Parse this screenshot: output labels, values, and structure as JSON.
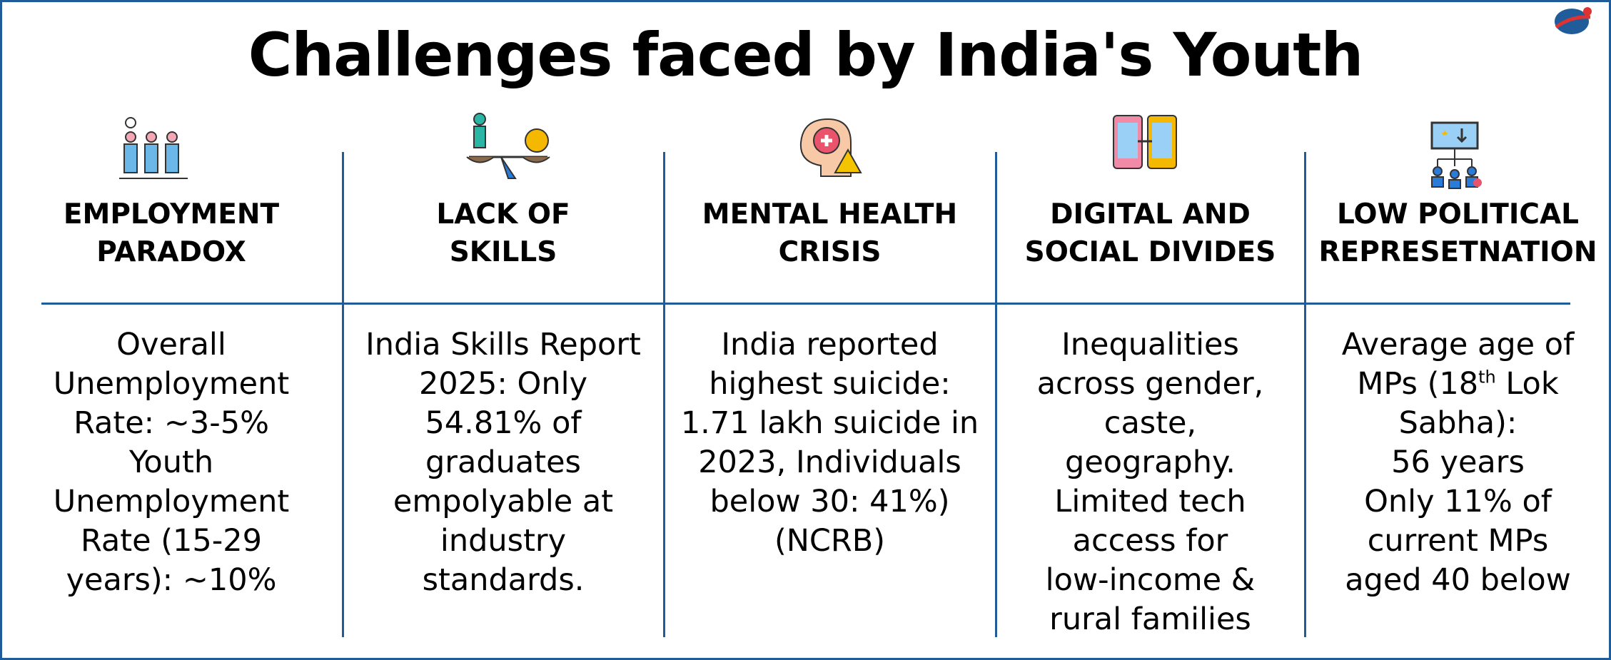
{
  "header": {
    "title": "Challenges faced by India's Youth"
  },
  "columns": [
    {
      "heading": [
        "EMPLOYMENT",
        "PARADOX"
      ],
      "lines": [
        "Overall",
        "Unemployment",
        "Rate: ~3-5%",
        "Youth",
        "Unemployment",
        "Rate (15-29",
        "years): ~10%"
      ]
    },
    {
      "heading": [
        "LACK OF",
        "SKILLS"
      ],
      "lines": [
        "India Skills Report",
        "2025: Only",
        "54.81% of",
        "graduates",
        "empolyable at",
        "industry",
        "standards."
      ]
    },
    {
      "heading": [
        "MENTAL HEALTH",
        "CRISIS"
      ],
      "lines": [
        "India reported",
        "highest suicide:",
        "1.71 lakh suicide in",
        "2023, Individuals",
        "below 30: 41%)",
        "(NCRB)"
      ]
    },
    {
      "heading": [
        "DIGITAL AND",
        "SOCIAL DIVIDES"
      ],
      "lines": [
        "Inequalities",
        "across gender,",
        "caste,",
        "geography.",
        "Limited tech",
        "access for",
        "low-income &",
        "rural families"
      ]
    },
    {
      "heading": [
        "LOW POLITICAL",
        "REPRESETNATION"
      ],
      "lines": [
        "Average age of",
        [
          "MPs (18",
          "th",
          " Lok"
        ],
        "Sabha):",
        "56 years",
        "Only 11% of",
        "current MPs",
        "aged 40 below"
      ]
    }
  ]
}
